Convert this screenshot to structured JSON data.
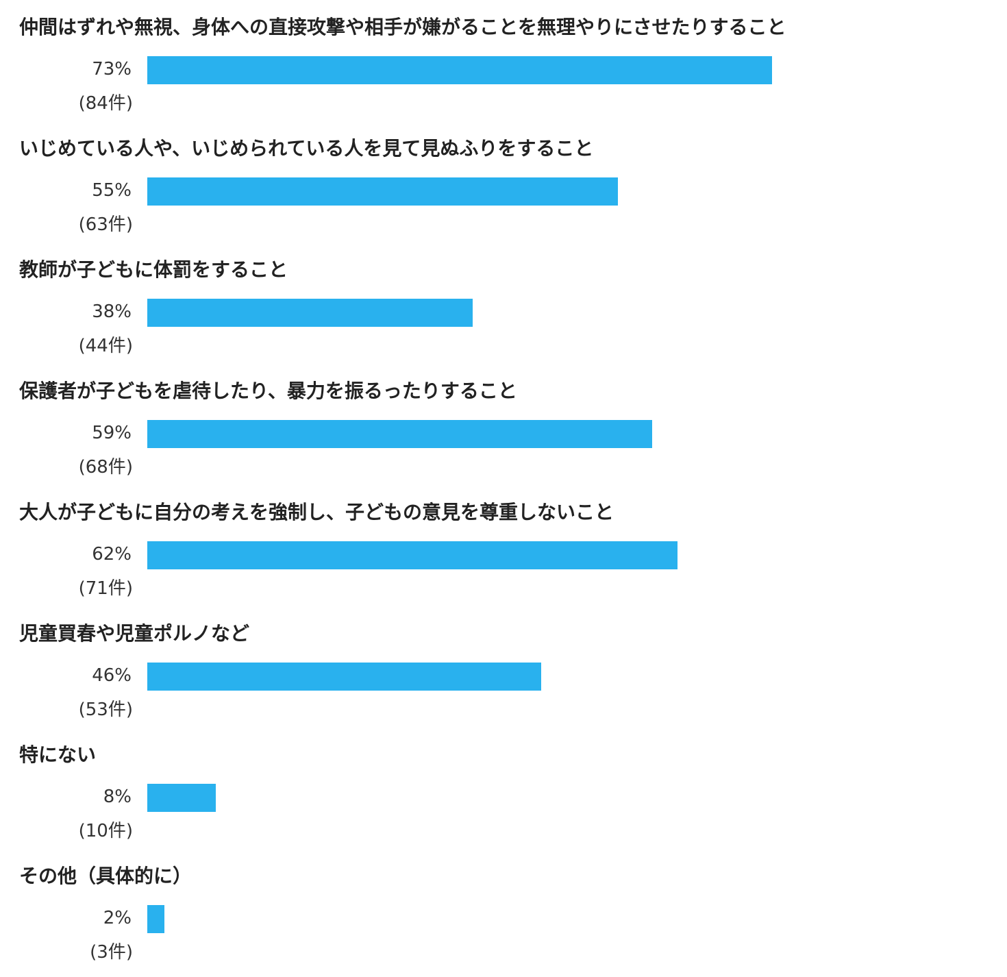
{
  "chart_data": {
    "type": "bar",
    "orientation": "horizontal",
    "bar_color": "#29b1ee",
    "categories": [
      "仲間はずれや無視、身体への直接攻撃や相手が嫌がることを無理やりにさせたりすること",
      "いじめている人や、いじめられている人を見て見ぬふりをすること",
      "教師が子どもに体罰をすること",
      "保護者が子どもを虐待したり、暴力を振るったりすること",
      "大人が子どもに自分の考えを強制し、子どもの意見を尊重しないこと",
      "児童買春や児童ポルノなど",
      "特にない",
      "その他（具体的に）"
    ],
    "values": [
      73,
      55,
      38,
      59,
      62,
      46,
      8,
      2
    ],
    "counts": [
      84,
      63,
      44,
      68,
      71,
      53,
      10,
      3
    ],
    "value_labels": [
      "73%",
      "55%",
      "38%",
      "59%",
      "62%",
      "46%",
      "8%",
      "2%"
    ],
    "count_labels": [
      "(84件)",
      "(63件)",
      "(44件)",
      "(68件)",
      "(71件)",
      "(53件)",
      "(10件)",
      "(3件)"
    ],
    "xlim": [
      0,
      100
    ],
    "grid": false
  }
}
